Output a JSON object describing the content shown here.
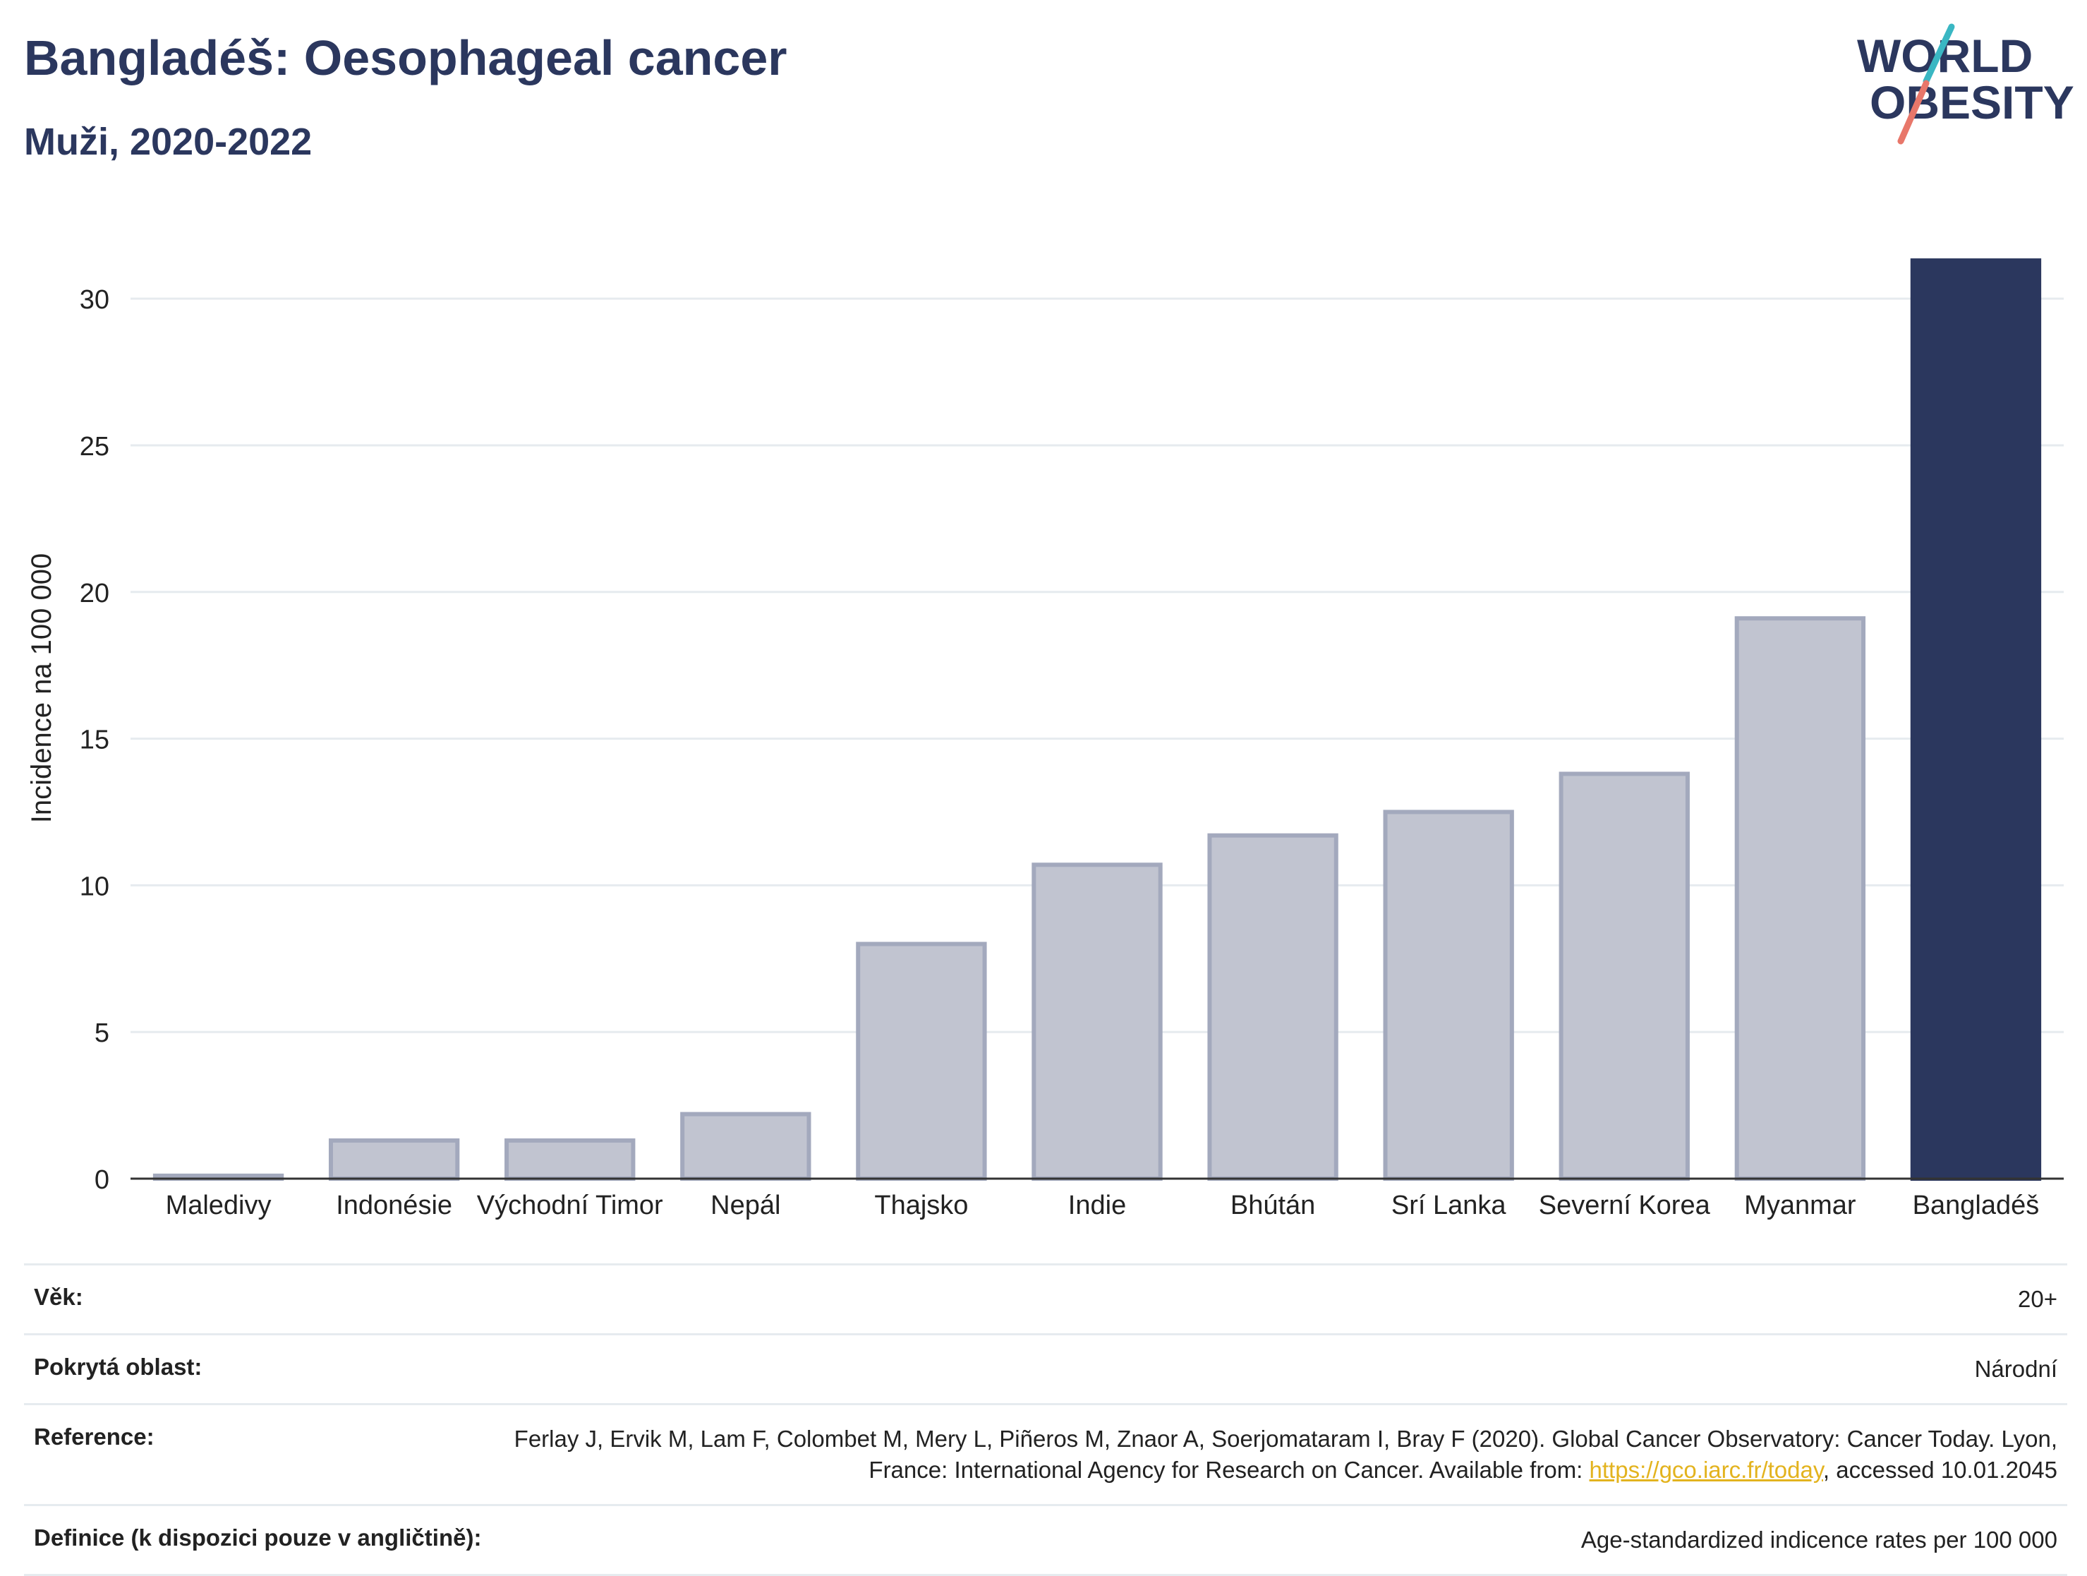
{
  "header": {
    "title": "Bangladéš: Oesophageal cancer",
    "subtitle": "Muži, 2020-2022"
  },
  "logo": {
    "line1": "WORLD",
    "line2": "OBESITY"
  },
  "chart_data": {
    "type": "bar",
    "categories": [
      "Maledivy",
      "Indonésie",
      "Východní Timor",
      "Nepál",
      "Thajsko",
      "Indie",
      "Bhútán",
      "Srí Lanka",
      "Severní Korea",
      "Myanmar",
      "Bangladéš"
    ],
    "values": [
      0.1,
      1.3,
      1.3,
      2.2,
      8.0,
      10.7,
      11.7,
      12.5,
      13.8,
      19.1,
      31.3
    ],
    "highlight": "Bangladéš",
    "ylabel": "Incidence na 100 000",
    "xlabel": "",
    "ylim": [
      0,
      32
    ],
    "yticks": [
      0,
      5,
      10,
      15,
      20,
      25,
      30
    ],
    "grid": true,
    "colors": {
      "bar": "#c1c4d0",
      "bar_border": "#a3a9bd",
      "highlight": "#2b375e",
      "grid": "#e6ebef",
      "axis": "#333333"
    }
  },
  "info": {
    "age_label": "Věk:",
    "age_value": "20+",
    "coverage_label": "Pokrytá oblast:",
    "coverage_value": "Národní",
    "reference_label": "Reference:",
    "reference_text_1": "Ferlay J, Ervik M, Lam F, Colombet M, Mery L, Piñeros M, Znaor A, Soerjomataram I, Bray F (2020). Global Cancer Observatory: Cancer Today. Lyon, France: International Agency for Research on Cancer. Available from: ",
    "reference_link": "https://gco.iarc.fr/today",
    "reference_text_2": ", accessed 10.01.2045",
    "definition_label": "Definice (k dispozici pouze v angličtině):",
    "definition_value": "Age-standardized indicence rates per 100 000"
  }
}
